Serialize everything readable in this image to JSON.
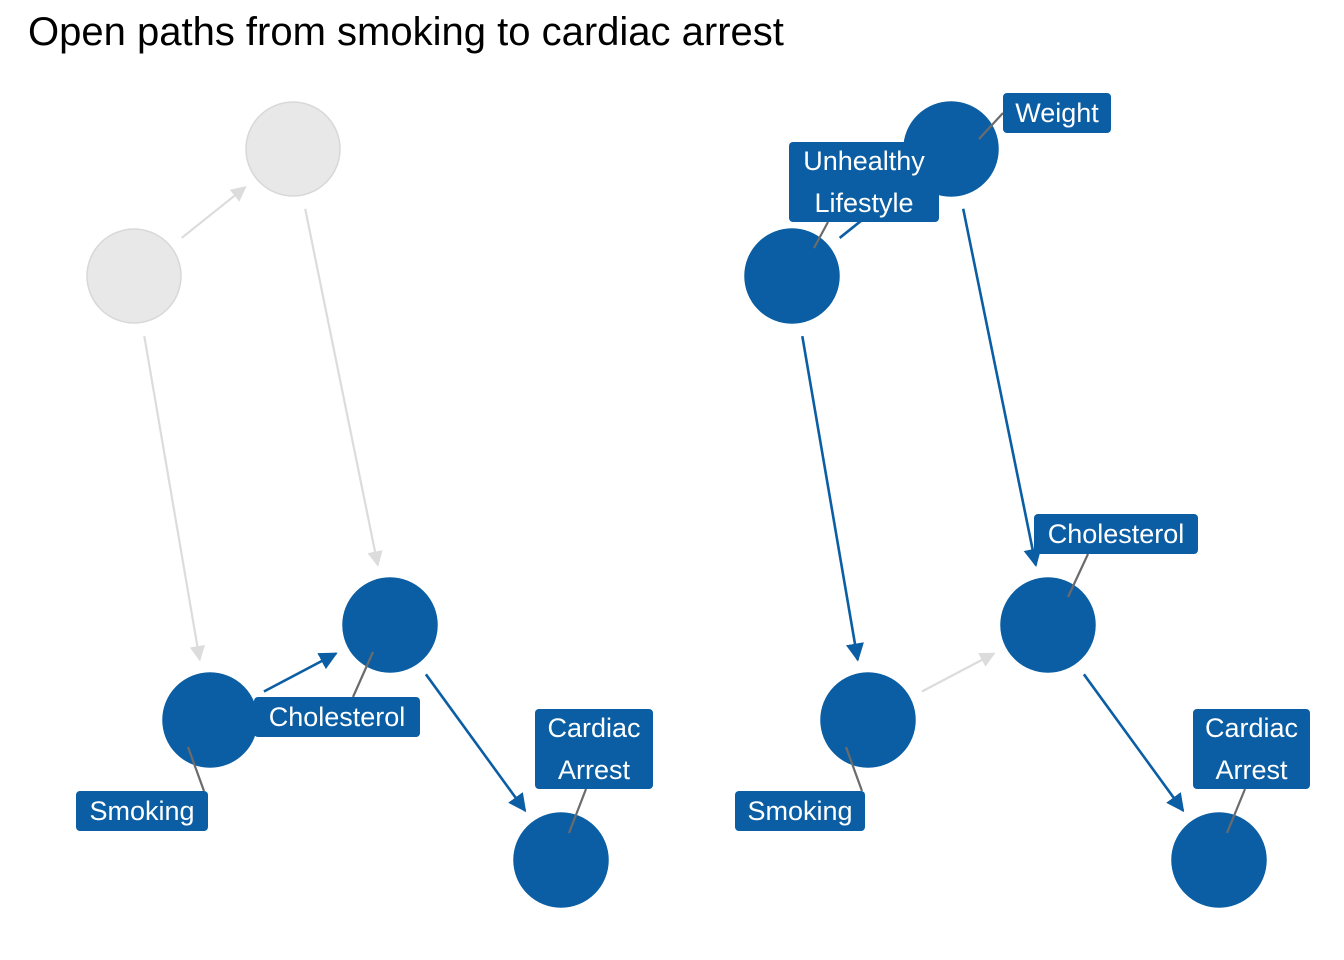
{
  "title": "Open paths from smoking to cardiac arrest",
  "colors": {
    "active": "#0b5ea3",
    "inactive_fill": "#e8e8e8",
    "inactive_stroke": "#d8d8d8",
    "inactive_edge": "#dcdcdc",
    "leader": "#6b6b6b"
  },
  "panels": [
    {
      "id": "left",
      "nodes": [
        {
          "id": "lifestyle",
          "active": false
        },
        {
          "id": "weight",
          "active": false
        },
        {
          "id": "smoking",
          "active": true,
          "label": [
            "Smoking"
          ]
        },
        {
          "id": "cholesterol",
          "active": true,
          "label": [
            "Cholesterol"
          ]
        },
        {
          "id": "cardiac",
          "active": true,
          "label": [
            "Cardiac",
            "Arrest"
          ]
        }
      ],
      "edges": [
        {
          "from": "lifestyle",
          "to": "weight",
          "active": false
        },
        {
          "from": "lifestyle",
          "to": "smoking",
          "active": false
        },
        {
          "from": "weight",
          "to": "cholesterol",
          "active": false
        },
        {
          "from": "smoking",
          "to": "cholesterol",
          "active": true
        },
        {
          "from": "cholesterol",
          "to": "cardiac",
          "active": true
        }
      ]
    },
    {
      "id": "right",
      "nodes": [
        {
          "id": "lifestyle",
          "active": true,
          "label": [
            "Unhealthy",
            "Lifestyle"
          ]
        },
        {
          "id": "weight",
          "active": true,
          "label": [
            "Weight"
          ]
        },
        {
          "id": "smoking",
          "active": true,
          "label": [
            "Smoking"
          ]
        },
        {
          "id": "cholesterol",
          "active": true,
          "label": [
            "Cholesterol"
          ]
        },
        {
          "id": "cardiac",
          "active": true,
          "label": [
            "Cardiac",
            "Arrest"
          ]
        }
      ],
      "edges": [
        {
          "from": "lifestyle",
          "to": "weight",
          "active": true
        },
        {
          "from": "lifestyle",
          "to": "smoking",
          "active": true
        },
        {
          "from": "weight",
          "to": "cholesterol",
          "active": true
        },
        {
          "from": "smoking",
          "to": "cholesterol",
          "active": false
        },
        {
          "from": "cholesterol",
          "to": "cardiac",
          "active": true
        }
      ]
    }
  ]
}
